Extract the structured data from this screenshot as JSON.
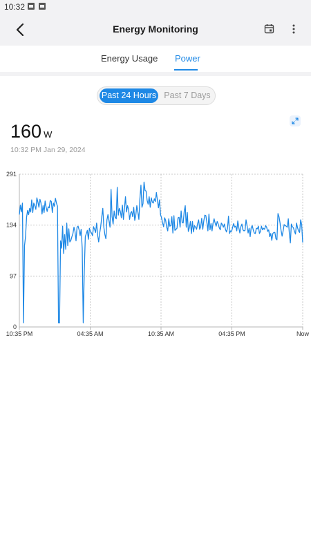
{
  "status_bar": {
    "time": "10:32"
  },
  "header": {
    "title": "Energy Monitoring"
  },
  "tabs": [
    {
      "label": "Energy Usage",
      "active": false
    },
    {
      "label": "Power",
      "active": true
    }
  ],
  "range_toggle": {
    "options": [
      "Past 24 Hours",
      "Past 7 Days"
    ],
    "selected": "Past 24 Hours"
  },
  "reading": {
    "value": "160",
    "unit": "W",
    "timestamp": "10:32 PM  Jan 29, 2024"
  },
  "colors": {
    "accent": "#1e88e5",
    "line": "#1e88e5",
    "grid": "#c8c8c8"
  },
  "chart_data": {
    "type": "line",
    "ylim": [
      0,
      291
    ],
    "y_ticks": [
      0,
      97,
      194,
      291
    ],
    "x_ticks": [
      "10:35 PM",
      "04:35 AM",
      "10:35 AM",
      "04:35 PM",
      "Now"
    ],
    "grid": true,
    "series": [
      {
        "values": [
          214,
          232,
          219,
          236,
          8,
          155,
          172,
          209,
          222,
          214,
          226,
          219,
          242,
          218,
          236,
          231,
          224,
          246,
          238,
          228,
          243,
          236,
          215,
          231,
          218,
          240,
          228,
          220,
          229,
          227,
          241,
          239,
          218,
          236,
          230,
          245,
          236,
          230,
          8,
          8,
          164,
          150,
          192,
          140,
          176,
          148,
          198,
          155,
          187,
          162,
          165,
          172,
          178,
          190,
          182,
          164,
          190,
          192,
          185,
          174,
          186,
          150,
          8,
          105,
          172,
          178,
          184,
          167,
          188,
          182,
          179,
          174,
          191,
          186,
          180,
          198,
          175,
          162,
          179,
          192,
          210,
          226,
          190,
          176,
          168,
          204,
          214,
          202,
          190,
          262,
          210,
          196,
          221,
          209,
          206,
          266,
          213,
          226,
          220,
          208,
          232,
          205,
          226,
          248,
          219,
          231,
          224,
          205,
          217,
          220,
          210,
          228,
          203,
          213,
          231,
          219,
          205,
          244,
          270,
          228,
          235,
          276,
          260,
          259,
          241,
          234,
          248,
          228,
          246,
          238,
          236,
          244,
          239,
          256,
          241,
          227,
          242,
          214,
          208,
          198,
          191,
          208,
          203,
          190,
          183,
          206,
          192,
          193,
          210,
          179,
          212,
          184,
          186,
          188,
          208,
          209,
          190,
          221,
          199,
          198,
          220,
          231,
          190,
          218,
          182,
          189,
          201,
          178,
          201,
          181,
          193,
          190,
          186,
          197,
          204,
          186,
          191,
          207,
          186,
          202,
          213,
          212,
          199,
          183,
          215,
          185,
          197,
          183,
          198,
          206,
          198,
          192,
          201,
          196,
          189,
          185,
          198,
          195,
          190,
          196,
          186,
          181,
          188,
          211,
          178,
          183,
          182,
          190,
          197,
          190,
          192,
          183,
          202,
          189,
          179,
          191,
          196,
          185,
          183,
          184,
          204,
          193,
          179,
          188,
          172,
          189,
          193,
          185,
          179,
          178,
          188,
          187,
          192,
          178,
          182,
          192,
          185,
          188,
          186,
          193,
          190,
          182,
          185,
          172,
          178,
          165,
          178,
          180,
          180,
          168,
          166,
          216,
          210,
          198,
          184,
          173,
          183,
          195,
          193,
          192,
          190,
          206,
          179,
          160,
          196,
          191,
          189,
          182,
          177,
          198,
          189,
          183,
          180,
          204,
          195,
          161
        ]
      }
    ]
  }
}
